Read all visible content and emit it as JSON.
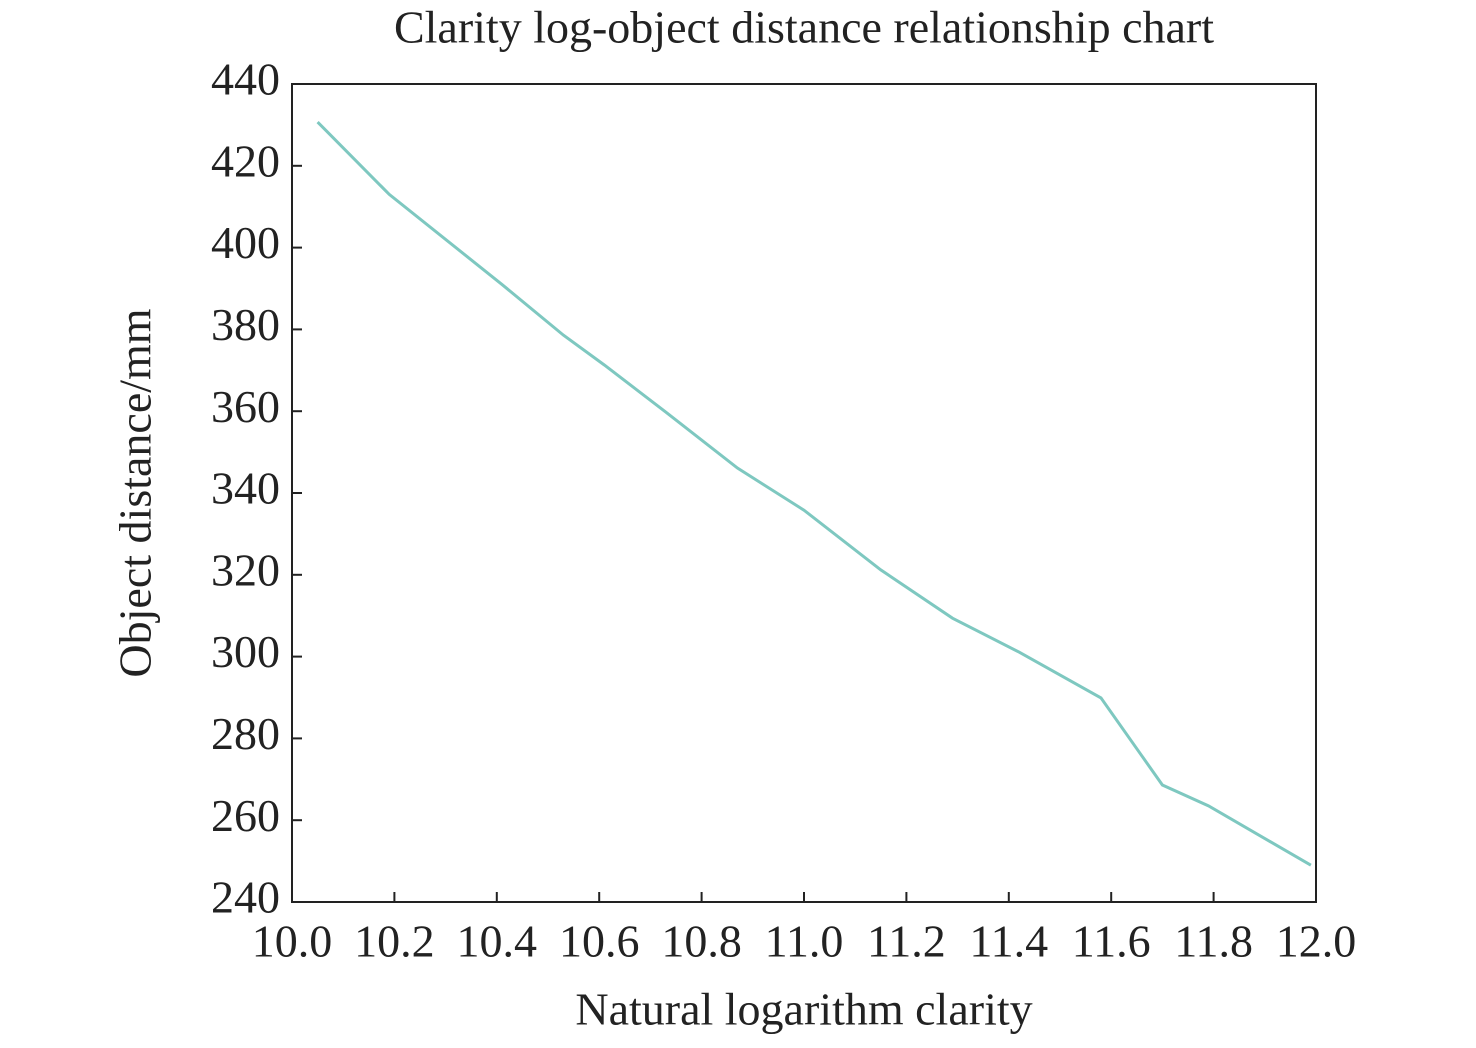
{
  "chart_data": {
    "type": "line",
    "title": "Clarity log-object distance relationship chart",
    "x_label": "Natural logarithm clarity",
    "y_label": "Object distance/mm",
    "x": [
      10.05,
      10.19,
      10.41,
      10.53,
      10.61,
      10.73,
      10.87,
      11.0,
      11.15,
      11.29,
      11.42,
      11.58,
      11.7,
      11.79,
      11.99
    ],
    "series": [
      {
        "color": "#7ec8c0",
        "values": [
          430.7,
          413,
          391,
          378.6,
          371.3,
          359.8,
          346.1,
          335.8,
          321.2,
          309.4,
          301.1,
          289.9,
          268.6,
          263.5,
          249
        ]
      }
    ],
    "xlim": [
      10,
      12
    ],
    "xticks": [
      {
        "value": 10,
        "label": "10.0"
      },
      10.2,
      10.4,
      10.6,
      10.8,
      {
        "value": 11,
        "label": "11.0"
      },
      11.2,
      11.4,
      11.6,
      11.8,
      {
        "value": 12,
        "label": "12.0"
      }
    ],
    "ylim": [
      240,
      440
    ],
    "yticks": [
      240,
      260,
      280,
      300,
      320,
      340,
      360,
      380,
      400,
      420,
      440
    ],
    "grid": false
  }
}
